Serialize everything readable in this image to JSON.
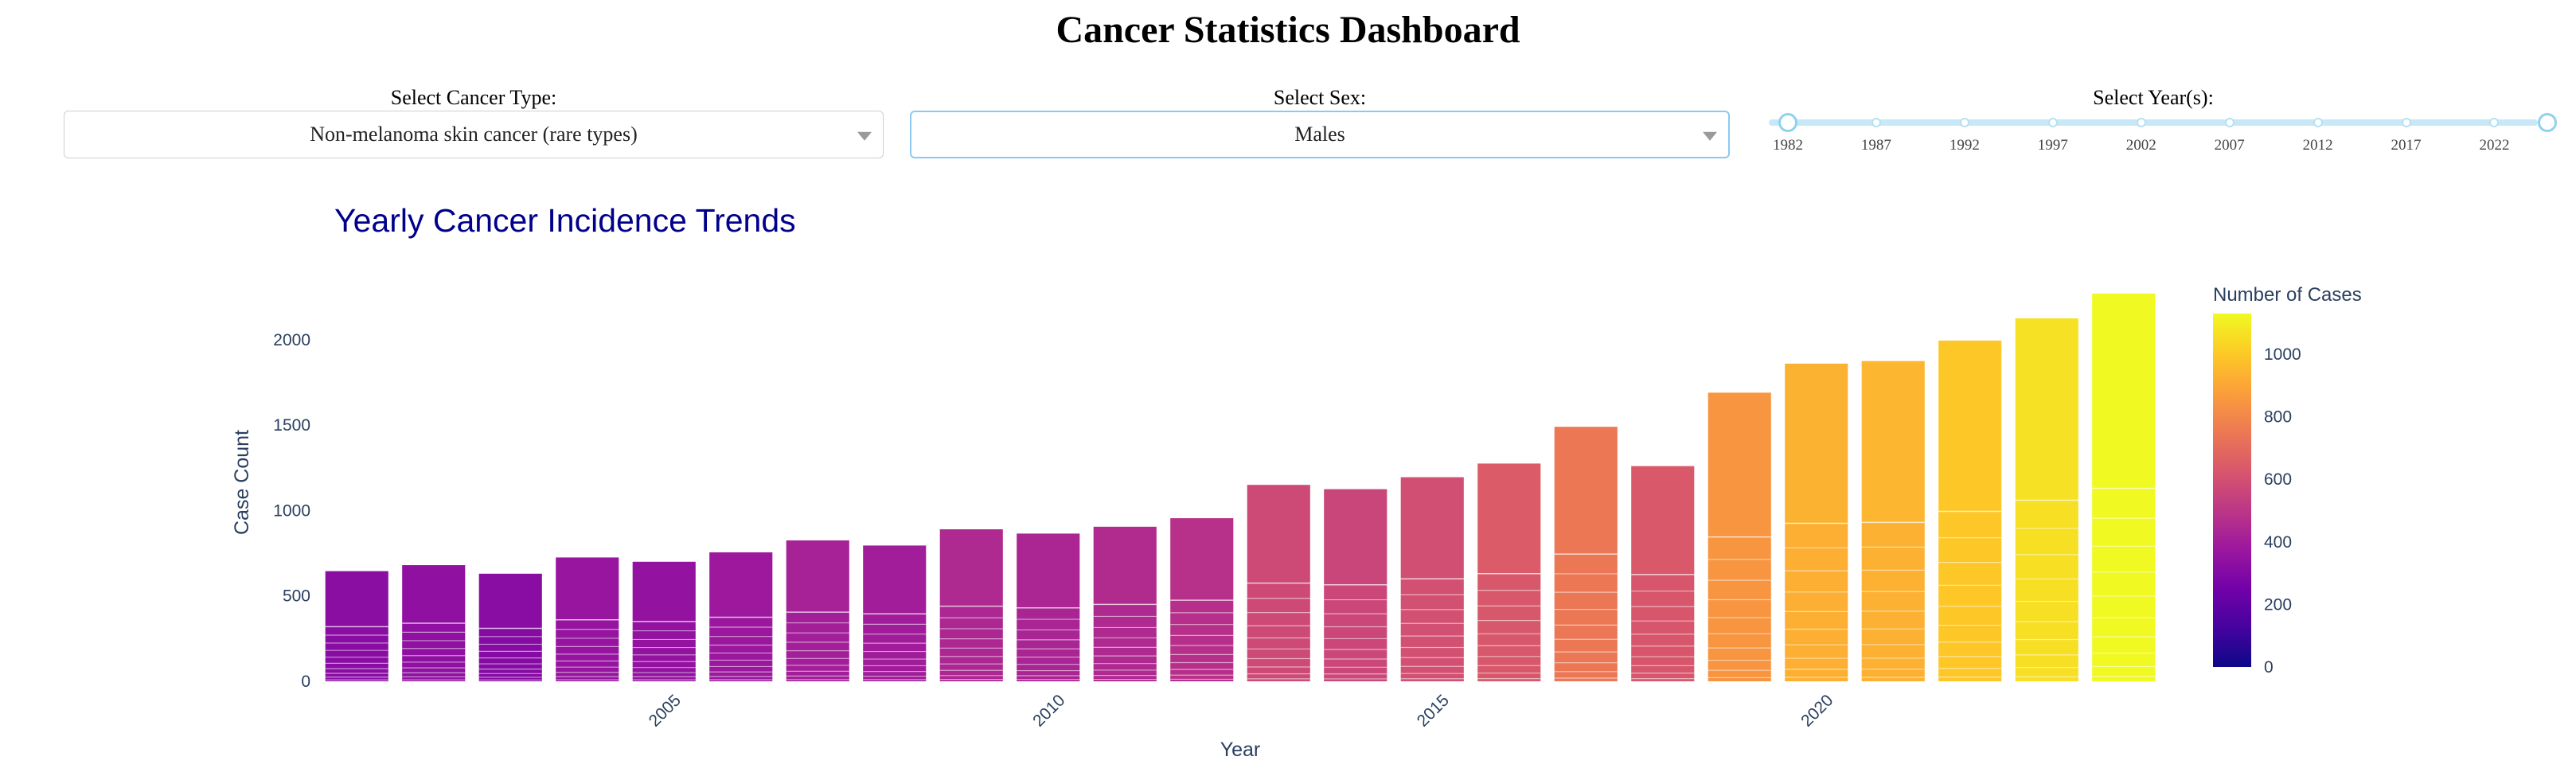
{
  "page": {
    "title": "Cancer Statistics Dashboard"
  },
  "controls": {
    "cancer_type": {
      "label": "Select Cancer Type:",
      "value": "Non-melanoma skin cancer (rare types)"
    },
    "sex": {
      "label": "Select Sex:",
      "value": "Males"
    },
    "years": {
      "label": "Select Year(s):",
      "marks": [
        "1982",
        "1987",
        "1992",
        "1997",
        "2002",
        "2007",
        "2012",
        "2017",
        "2022"
      ],
      "range": [
        1982,
        2025
      ]
    }
  },
  "icons": {
    "dropdown": "chevron-down-icon"
  },
  "colors": {
    "title": "#00008b",
    "axis_text": "#2a3f5f",
    "active_border": "#8cc8f2"
  },
  "chart_data": {
    "type": "bar",
    "title": "Yearly Cancer Incidence Trends",
    "xlabel": "Year",
    "ylabel": "Case Count",
    "x_ticks": [
      "2005",
      "2010",
      "2015",
      "2020"
    ],
    "y_ticks": [
      "0",
      "500",
      "1000",
      "1500",
      "2000"
    ],
    "ylim": [
      0,
      2330
    ],
    "grid": false,
    "colorscale": "Plasma",
    "colorbar": {
      "title": "Number of Cases",
      "range": [
        0,
        1130
      ],
      "ticks": [
        "0",
        "200",
        "400",
        "600",
        "800",
        "1000"
      ],
      "position": "right"
    },
    "categories": [
      2001,
      2002,
      2003,
      2004,
      2005,
      2006,
      2007,
      2008,
      2009,
      2010,
      2011,
      2012,
      2013,
      2014,
      2015,
      2016,
      2017,
      2018,
      2019,
      2020,
      2021,
      2022,
      2023,
      2024
    ],
    "series": [
      {
        "values": [
          320,
          340,
          310,
          360,
          350,
          375,
          405,
          395,
          440,
          430,
          450,
          475,
          575,
          565,
          600,
          630,
          745,
          625,
          845,
          925,
          930,
          995,
          1060,
          1130
        ]
      },
      {
        "values": [
          325,
          340,
          320,
          365,
          350,
          380,
          420,
          400,
          450,
          435,
          455,
          480,
          575,
          560,
          595,
          645,
          745,
          635,
          845,
          935,
          945,
          1000,
          1065,
          1140
        ]
      }
    ]
  }
}
